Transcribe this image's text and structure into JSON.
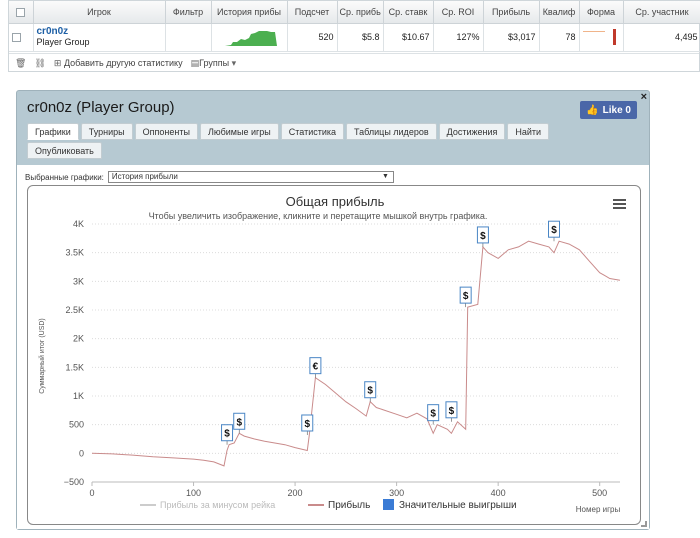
{
  "stats_table": {
    "headers": [
      "Игрок",
      "Фильтр",
      "История прибы",
      "Подсчет",
      "Ср. прибь",
      "Ср. ставк",
      "Ср. ROI",
      "Прибыль",
      "Квалиф",
      "Форма",
      "Ср. участник"
    ],
    "row": {
      "player": "cr0n0z",
      "group": "Player Group",
      "filter": "",
      "count": "520",
      "avg_profit": "$5.8",
      "avg_stake": "$10.67",
      "avg_roi": "127%",
      "profit": "$3,017",
      "itm": "78",
      "avg_field": "4,495"
    },
    "sparkline_color": "#4caf50",
    "toolbar": {
      "add_stats_label": "Добавить другую статистику",
      "groups_label": "Группы"
    }
  },
  "panel": {
    "title": "cr0n0z (Player Group)",
    "like_label": "Like 0",
    "close_glyph": "×",
    "tabs": [
      "Графики",
      "Турниры",
      "Оппоненты",
      "Любимые игры",
      "Статистика",
      "Таблицы лидеров",
      "Достижения",
      "Найти",
      "Опубликовать"
    ],
    "active_tab": "Графики",
    "chart_selector_label": "Выбранные графики:",
    "chart_selector_value": "История прибыли"
  },
  "chart_data": {
    "type": "line",
    "title": "Общая прибыль",
    "subtitle": "Чтобы увеличить изображение, кликните и перетащите мышкой внутрь графика.",
    "xlabel": "Номер игры",
    "ylabel": "Суммарный итог (USD)",
    "xlim": [
      0,
      520
    ],
    "ylim": [
      -500,
      4000
    ],
    "xticks": [
      0,
      100,
      200,
      300,
      400,
      500
    ],
    "yticks": [
      -500,
      0,
      500,
      1000,
      1500,
      2000,
      2500,
      3000,
      3500,
      4000
    ],
    "ytick_labels": [
      "−500",
      "0",
      "500",
      "1K",
      "1.5K",
      "2K",
      "2.5K",
      "3K",
      "3.5K",
      "4K"
    ],
    "grid": true,
    "legend_position": "bottom",
    "series": [
      {
        "name": "Прибыль за минусом рейка",
        "color": "#cccccc",
        "x": [],
        "y": []
      },
      {
        "name": "Прибыль",
        "color": "#c98b8b",
        "x": [
          0,
          20,
          40,
          60,
          80,
          100,
          110,
          120,
          130,
          133,
          135,
          140,
          145,
          150,
          160,
          170,
          180,
          190,
          200,
          212,
          214,
          220,
          230,
          240,
          250,
          260,
          270,
          274,
          280,
          300,
          310,
          320,
          330,
          336,
          340,
          350,
          354,
          360,
          368,
          370,
          380,
          385,
          390,
          400,
          410,
          420,
          430,
          440,
          450,
          455,
          460,
          470,
          480,
          490,
          500,
          505,
          510,
          520
        ],
        "y": [
          0,
          -10,
          -30,
          -60,
          -80,
          -100,
          -120,
          -150,
          -220,
          50,
          150,
          180,
          350,
          300,
          250,
          210,
          180,
          150,
          100,
          50,
          320,
          1320,
          1200,
          1050,
          900,
          780,
          650,
          900,
          800,
          680,
          620,
          700,
          600,
          350,
          500,
          420,
          350,
          550,
          420,
          2550,
          2600,
          3600,
          3500,
          3400,
          3550,
          3600,
          3700,
          3650,
          3600,
          3500,
          3700,
          3650,
          3550,
          3350,
          3150,
          3100,
          3050,
          3020
        ]
      },
      {
        "name": "Значительные выигрыши",
        "color": "#3a7bd5",
        "points": [
          {
            "x": 133,
            "y": 150,
            "label": "$"
          },
          {
            "x": 145,
            "y": 350,
            "label": "$"
          },
          {
            "x": 212,
            "y": 320,
            "label": "$"
          },
          {
            "x": 220,
            "y": 1320,
            "label": "€"
          },
          {
            "x": 274,
            "y": 900,
            "label": "$"
          },
          {
            "x": 336,
            "y": 500,
            "label": "$"
          },
          {
            "x": 354,
            "y": 550,
            "label": "$"
          },
          {
            "x": 368,
            "y": 2550,
            "label": "$"
          },
          {
            "x": 385,
            "y": 3600,
            "label": "$"
          },
          {
            "x": 455,
            "y": 3700,
            "label": "$"
          }
        ]
      }
    ]
  }
}
